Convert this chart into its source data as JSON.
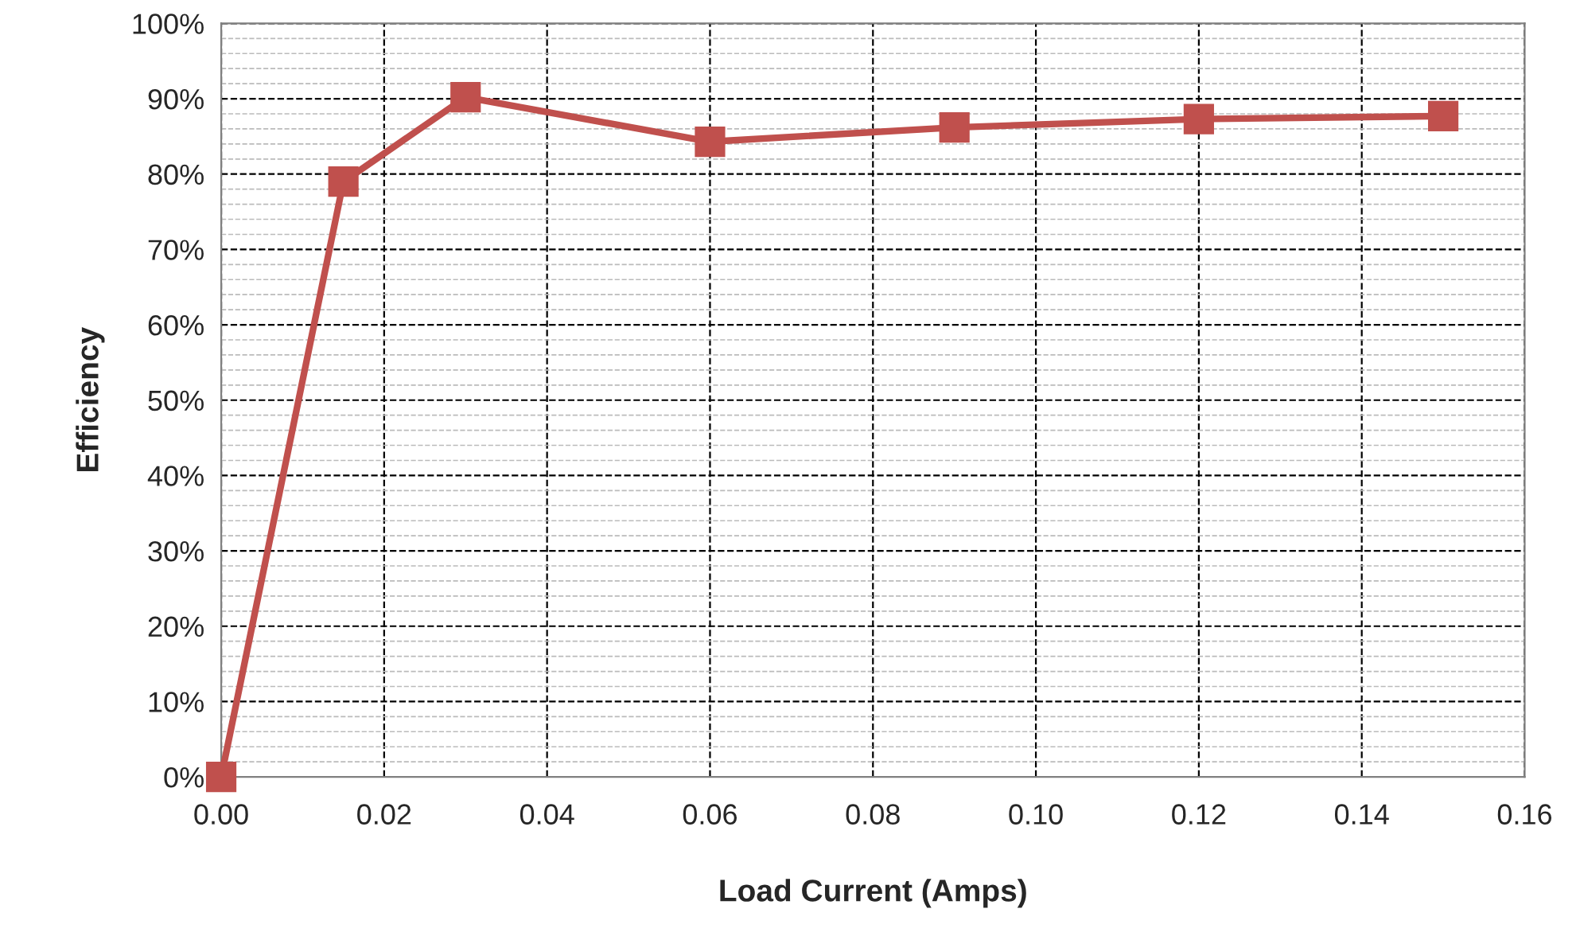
{
  "chart_data": {
    "type": "line",
    "xlabel": "Load Current (Amps)",
    "ylabel": "Efficiency",
    "x": [
      0,
      0.015,
      0.03,
      0.06,
      0.09,
      0.12,
      0.15
    ],
    "series": [
      {
        "color": "#c0504d",
        "values": [
          0,
          79.0,
          90.2,
          84.3,
          86.2,
          87.3,
          87.7
        ]
      }
    ],
    "marker": "square",
    "line_style": "solid",
    "grid": true,
    "xlim": [
      0,
      0.16
    ],
    "xticks": [
      {
        "value": 0,
        "label": "0.00"
      },
      {
        "value": 0.02,
        "label": "0.02"
      },
      {
        "value": 0.04,
        "label": "0.04"
      },
      {
        "value": 0.06,
        "label": "0.06"
      },
      {
        "value": 0.08,
        "label": "0.08"
      },
      {
        "value": 0.1,
        "label": "0.10"
      },
      {
        "value": 0.12,
        "label": "0.12"
      },
      {
        "value": 0.14,
        "label": "0.14"
      },
      {
        "value": 0.16,
        "label": "0.16"
      }
    ],
    "ylim": [
      0,
      100
    ],
    "yticks": [
      {
        "value": 0,
        "label": "0%"
      },
      {
        "value": 10,
        "label": "10%"
      },
      {
        "value": 20,
        "label": "20%"
      },
      {
        "value": 30,
        "label": "30%"
      },
      {
        "value": 40,
        "label": "40%"
      },
      {
        "value": 50,
        "label": "50%"
      },
      {
        "value": 60,
        "label": "60%"
      },
      {
        "value": 70,
        "label": "70%"
      },
      {
        "value": 80,
        "label": "80%"
      },
      {
        "value": 90,
        "label": "90%"
      },
      {
        "value": 100,
        "label": "100%"
      }
    ]
  }
}
